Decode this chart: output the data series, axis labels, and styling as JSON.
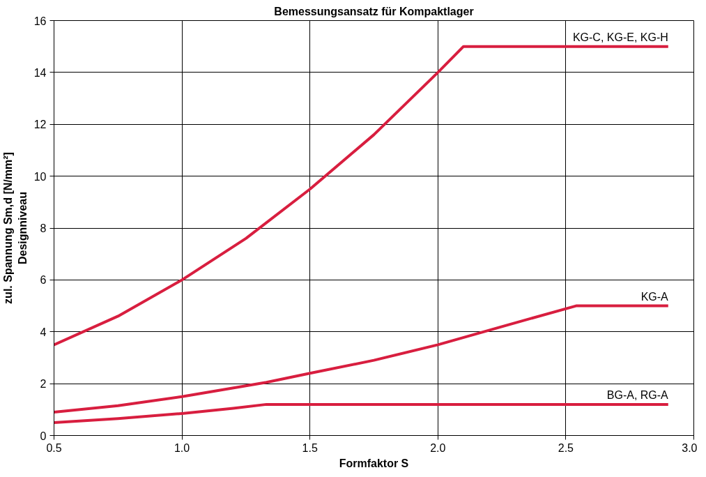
{
  "chart_data": {
    "type": "line",
    "title": "Bemessungsansatz für Kompaktlager",
    "xlabel": "Formfaktor S",
    "ylabel": "zul. Spannung Sm,d [N/mm²]\nDesignniveau",
    "xlim": [
      0.5,
      3.0
    ],
    "xticks": [
      {
        "value": 0.5,
        "label": "0.5"
      },
      {
        "value": 1.0,
        "label": "1.0"
      },
      {
        "value": 1.5,
        "label": "1.5"
      },
      {
        "value": 2.0,
        "label": "2.0"
      },
      {
        "value": 2.5,
        "label": "2.5"
      },
      {
        "value": 3.0,
        "label": "3.0"
      }
    ],
    "ylim": [
      0,
      16
    ],
    "yticks": [
      0,
      2,
      4,
      6,
      8,
      10,
      12,
      14,
      16
    ],
    "grid": true,
    "line_style": "solid",
    "marker": "none",
    "series": [
      {
        "name": "KG-C, KG-E, KG-H",
        "color": "#d81e3f",
        "x": [
          0.5,
          0.75,
          1.0,
          1.25,
          1.5,
          1.75,
          2.0,
          2.1,
          2.9
        ],
        "values": [
          3.5,
          4.6,
          6.0,
          7.6,
          9.5,
          11.6,
          14.0,
          15.0,
          15.0
        ]
      },
      {
        "name": "KG-A",
        "color": "#d81e3f",
        "x": [
          0.5,
          0.75,
          1.0,
          1.33,
          1.5,
          1.75,
          2.0,
          2.25,
          2.54,
          2.9
        ],
        "values": [
          0.9,
          1.15,
          1.5,
          2.05,
          2.4,
          2.9,
          3.5,
          4.2,
          5.0,
          5.0
        ]
      },
      {
        "name": "BG-A, RG-A",
        "color": "#d81e3f",
        "x": [
          0.5,
          0.75,
          1.0,
          1.2,
          1.33,
          2.9
        ],
        "values": [
          0.5,
          0.65,
          0.85,
          1.05,
          1.2,
          1.2
        ]
      }
    ]
  }
}
